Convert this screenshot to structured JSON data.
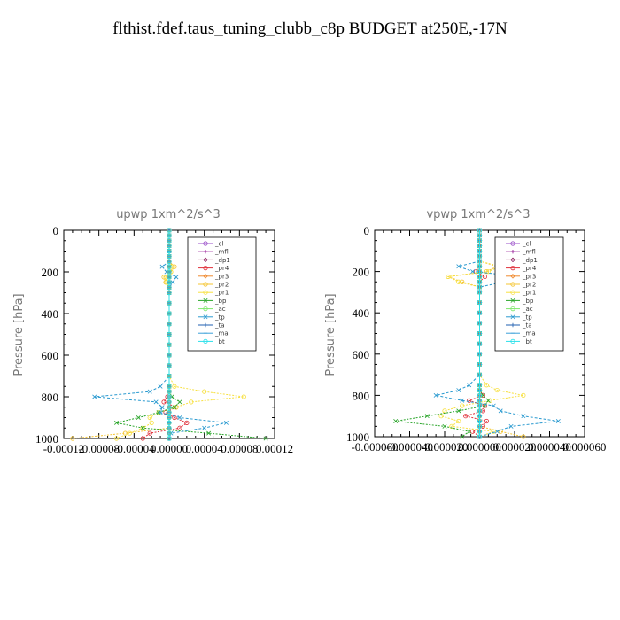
{
  "page_title": "flthist.fdef.taus_tuning_clubb_c8p  BUDGET at250E,-17N",
  "chart_data": [
    {
      "type": "line",
      "title": "upwp   1xm^2/s^3",
      "ylabel": "Pressure [hPa]",
      "xlabel": "",
      "ylim": [
        1000,
        0
      ],
      "xlim": [
        -0.00012,
        0.00012
      ],
      "x_ticks": [
        "-0.00012",
        "-0.00008",
        "-0.00004",
        "0.00000",
        "0.00004",
        "0.00008",
        "0.00012"
      ],
      "y_ticks": [
        "0",
        "200",
        "400",
        "600",
        "800",
        "1000"
      ],
      "legend": [
        "_cl",
        "_mfl",
        "_dp1",
        "_pr4",
        "_pr3",
        "_pr2",
        "_pr1",
        "_bp",
        "_ac",
        "_tp",
        "_ta",
        "_ma",
        "_bt"
      ],
      "levels": [
        0,
        25,
        50,
        75,
        100,
        125,
        150,
        175,
        200,
        225,
        250,
        275,
        300,
        350,
        400,
        450,
        500,
        550,
        600,
        650,
        700,
        750,
        775,
        800,
        825,
        850,
        875,
        900,
        925,
        950,
        975,
        1000
      ],
      "series": [
        {
          "name": "_cl",
          "color": "#9a4fc9",
          "values": [
            0,
            0,
            0,
            0,
            0,
            0,
            0,
            0,
            0,
            0,
            0,
            0,
            0,
            0,
            0,
            0,
            0,
            0,
            0,
            0,
            0,
            0,
            0,
            0,
            0,
            0,
            0,
            0,
            0,
            0,
            0,
            0
          ]
        },
        {
          "name": "_mfl",
          "color": "#8b008b",
          "values": [
            0,
            0,
            0,
            0,
            0,
            0,
            0,
            0,
            0,
            0,
            0,
            0,
            0,
            0,
            0,
            0,
            0,
            0,
            0,
            0,
            0,
            0,
            0,
            0,
            0,
            0,
            0,
            0,
            0,
            0,
            0,
            0
          ]
        },
        {
          "name": "_dp1",
          "color": "#8b1a5a",
          "values": [
            0,
            0,
            0,
            0,
            0,
            0,
            0,
            0,
            0,
            0,
            0,
            0,
            0,
            0,
            0,
            0,
            0,
            0,
            0,
            0,
            0,
            0,
            0,
            0,
            0,
            0,
            0,
            0,
            0,
            0,
            0,
            0
          ]
        },
        {
          "name": "_pr4",
          "color": "#e0303a",
          "values": [
            0,
            0,
            0,
            0,
            0,
            0,
            0,
            0,
            0,
            0,
            0,
            0,
            0,
            0,
            0,
            0,
            0,
            0,
            0,
            0,
            0,
            0,
            0,
            -2e-06,
            -6e-06,
            8e-06,
            -4e-06,
            6e-06,
            2e-05,
            1.2e-05,
            -2.2e-05,
            -3e-05
          ]
        },
        {
          "name": "_pr3",
          "color": "#f08a30",
          "values": [
            0,
            0,
            0,
            0,
            0,
            0,
            0,
            0,
            0,
            0,
            0,
            0,
            0,
            0,
            0,
            0,
            0,
            0,
            0,
            0,
            0,
            0,
            0,
            0,
            0,
            0,
            0,
            0,
            0,
            0,
            0,
            0
          ]
        },
        {
          "name": "_pr2",
          "color": "#f4c430",
          "values": [
            0,
            0,
            0,
            0,
            0,
            0,
            0,
            6e-06,
            2e-06,
            -6e-06,
            -4e-06,
            0,
            0,
            0,
            0,
            0,
            0,
            0,
            0,
            0,
            0,
            0,
            0,
            0,
            0,
            0,
            0,
            0,
            0,
            0,
            -5e-05,
            -0.00011
          ]
        },
        {
          "name": "_pr1",
          "color": "#f7e040",
          "values": [
            0,
            0,
            0,
            0,
            0,
            0,
            0,
            4e-06,
            2e-06,
            -4e-06,
            -3e-06,
            0,
            0,
            0,
            0,
            0,
            0,
            0,
            0,
            0,
            0,
            6e-06,
            4e-05,
            8.5e-05,
            2.5e-05,
            8e-06,
            -1.2e-05,
            -2.2e-05,
            -2e-05,
            -3e-05,
            -4.5e-05,
            -6e-05
          ]
        },
        {
          "name": "_bp",
          "color": "#2aa52a",
          "values": [
            0,
            0,
            0,
            0,
            0,
            0,
            0,
            0,
            0,
            0,
            0,
            0,
            0,
            0,
            0,
            0,
            0,
            0,
            0,
            0,
            0,
            0,
            0,
            3e-06,
            1.2e-05,
            6e-06,
            -1.2e-05,
            -3.5e-05,
            -6e-05,
            -3e-05,
            4.5e-05,
            0.00011
          ]
        },
        {
          "name": "_ac",
          "color": "#7de86a",
          "values": [
            0,
            0,
            0,
            0,
            0,
            0,
            0,
            0,
            0,
            0,
            0,
            0,
            0,
            0,
            0,
            0,
            0,
            0,
            0,
            0,
            0,
            0,
            0,
            0,
            0,
            0,
            0,
            0,
            0,
            0,
            0,
            0
          ]
        },
        {
          "name": "_tp",
          "color": "#2a9ad0",
          "values": [
            0,
            0,
            0,
            0,
            0,
            0,
            0,
            -8e-06,
            -3e-06,
            8e-06,
            4e-06,
            0,
            0,
            0,
            0,
            0,
            0,
            0,
            0,
            0,
            0,
            -1e-05,
            -2.2e-05,
            -8.5e-05,
            -1.5e-05,
            -8e-06,
            -1e-05,
            1.2e-05,
            6.5e-05,
            4e-05,
            2e-06,
            0
          ]
        },
        {
          "name": "_ta",
          "color": "#1f5fb0",
          "values": [
            0,
            0,
            0,
            0,
            0,
            0,
            0,
            0,
            0,
            0,
            0,
            0,
            0,
            0,
            0,
            0,
            0,
            0,
            0,
            0,
            0,
            0,
            0,
            0,
            0,
            0,
            0,
            0,
            0,
            0,
            0,
            0
          ]
        },
        {
          "name": "_ma",
          "color": "#3aa0d8",
          "values": [
            0,
            0,
            0,
            0,
            0,
            0,
            0,
            0,
            0,
            0,
            0,
            0,
            0,
            0,
            0,
            0,
            0,
            0,
            0,
            0,
            0,
            0,
            0,
            0,
            0,
            0,
            0,
            0,
            0,
            0,
            0,
            0
          ]
        },
        {
          "name": "_bt",
          "color": "#28e0ea",
          "values": [
            0,
            0,
            0,
            0,
            0,
            0,
            0,
            0,
            0,
            0,
            0,
            0,
            0,
            0,
            0,
            0,
            0,
            0,
            0,
            0,
            0,
            0,
            0,
            0,
            0,
            0,
            0,
            0,
            0,
            0,
            0,
            0
          ]
        }
      ]
    },
    {
      "type": "line",
      "title": "vpwp   1xm^2/s^3",
      "ylabel": "Pressure [hPa]",
      "xlabel": "",
      "ylim": [
        1000,
        0
      ],
      "xlim": [
        -6e-05,
        6e-05
      ],
      "x_ticks": [
        "-0.000060",
        "-0.000040",
        "-0.000020",
        "0.000000",
        "0.000020",
        "0.000040",
        "0.000060"
      ],
      "y_ticks": [
        "0",
        "200",
        "400",
        "600",
        "800",
        "1000"
      ],
      "legend": [
        "_cl",
        "_mfl",
        "_dp1",
        "_pr4",
        "_pr3",
        "_pr2",
        "_pr1",
        "_bp",
        "_ac",
        "_tp",
        "_ta",
        "_ma",
        "_bt"
      ],
      "levels": [
        0,
        25,
        50,
        75,
        100,
        125,
        150,
        175,
        200,
        225,
        250,
        275,
        300,
        350,
        400,
        450,
        500,
        550,
        600,
        650,
        700,
        750,
        775,
        800,
        825,
        850,
        875,
        900,
        925,
        950,
        975,
        1000
      ],
      "series": [
        {
          "name": "_cl",
          "color": "#9a4fc9",
          "values": [
            0,
            0,
            0,
            0,
            0,
            0,
            0,
            0,
            0,
            0,
            0,
            0,
            0,
            0,
            0,
            0,
            0,
            0,
            0,
            0,
            0,
            0,
            0,
            0,
            0,
            0,
            0,
            0,
            0,
            0,
            0,
            0
          ]
        },
        {
          "name": "_mfl",
          "color": "#8b008b",
          "values": [
            0,
            0,
            0,
            0,
            0,
            0,
            0,
            0,
            0,
            0,
            0,
            0,
            0,
            0,
            0,
            0,
            0,
            0,
            0,
            0,
            0,
            0,
            0,
            0,
            0,
            0,
            0,
            0,
            0,
            0,
            0,
            0
          ]
        },
        {
          "name": "_dp1",
          "color": "#8b1a5a",
          "values": [
            0,
            0,
            0,
            0,
            0,
            0,
            0,
            0,
            0,
            0,
            0,
            0,
            0,
            0,
            0,
            0,
            0,
            0,
            0,
            0,
            0,
            0,
            0,
            0,
            0,
            0,
            0,
            0,
            0,
            0,
            0,
            0
          ]
        },
        {
          "name": "_pr4",
          "color": "#e0303a",
          "values": [
            0,
            0,
            0,
            0,
            0,
            0,
            0,
            0,
            -2e-06,
            3e-06,
            0,
            0,
            0,
            0,
            0,
            0,
            0,
            0,
            0,
            0,
            0,
            0,
            0,
            2e-06,
            -6e-06,
            3e-06,
            2e-06,
            -8e-06,
            4e-06,
            2e-06,
            -4e-06,
            0
          ]
        },
        {
          "name": "_pr3",
          "color": "#f08a30",
          "values": [
            0,
            0,
            0,
            0,
            0,
            0,
            0,
            0,
            0,
            0,
            0,
            0,
            0,
            0,
            0,
            0,
            0,
            0,
            0,
            0,
            0,
            0,
            0,
            0,
            0,
            0,
            0,
            0,
            0,
            0,
            0,
            0
          ]
        },
        {
          "name": "_pr2",
          "color": "#f4c430",
          "values": [
            0,
            0,
            0,
            0,
            0,
            0,
            0,
            1e-05,
            4e-06,
            -1.8e-05,
            -1e-05,
            0,
            0,
            0,
            0,
            0,
            0,
            0,
            0,
            0,
            0,
            0,
            0,
            0,
            0,
            0,
            0,
            0,
            0,
            0,
            1.2e-05,
            2.5e-05
          ]
        },
        {
          "name": "_pr1",
          "color": "#f7e040",
          "values": [
            0,
            0,
            0,
            0,
            0,
            0,
            0,
            1.2e-05,
            5e-06,
            -1.8e-05,
            -1.2e-05,
            0,
            0,
            0,
            0,
            0,
            0,
            0,
            0,
            0,
            0,
            4e-06,
            1e-05,
            2.5e-05,
            6e-06,
            -1e-05,
            -2e-05,
            -2.2e-05,
            -1.2e-05,
            -1.6e-05,
            8e-06,
            0
          ]
        },
        {
          "name": "_bp",
          "color": "#2aa52a",
          "values": [
            0,
            0,
            0,
            0,
            0,
            0,
            0,
            0,
            0,
            0,
            0,
            0,
            0,
            0,
            0,
            0,
            0,
            0,
            0,
            0,
            0,
            0,
            0,
            2e-06,
            5e-06,
            3e-06,
            -1.2e-05,
            -3e-05,
            -4.8e-05,
            -2e-05,
            -6e-06,
            -1e-05
          ]
        },
        {
          "name": "_ac",
          "color": "#7de86a",
          "values": [
            0,
            0,
            0,
            0,
            0,
            0,
            0,
            0,
            0,
            0,
            0,
            0,
            0,
            0,
            0,
            0,
            0,
            0,
            0,
            0,
            0,
            0,
            0,
            0,
            0,
            0,
            0,
            0,
            0,
            0,
            0,
            0
          ]
        },
        {
          "name": "_tp",
          "color": "#2a9ad0",
          "values": [
            0,
            0,
            0,
            0,
            0,
            0,
            0,
            -1.2e-05,
            -4e-06,
            2.5e-05,
            1.4e-05,
            0,
            0,
            0,
            0,
            0,
            0,
            0,
            0,
            0,
            0,
            -6e-06,
            -1.2e-05,
            -2.5e-05,
            -1e-05,
            8e-06,
            1.2e-05,
            2.5e-05,
            4.5e-05,
            1.8e-05,
            1e-05,
            0
          ]
        },
        {
          "name": "_ta",
          "color": "#1f5fb0",
          "values": [
            0,
            0,
            0,
            0,
            0,
            0,
            0,
            0,
            0,
            0,
            0,
            0,
            0,
            0,
            0,
            0,
            0,
            0,
            0,
            0,
            0,
            0,
            0,
            0,
            0,
            0,
            0,
            0,
            0,
            0,
            0,
            0
          ]
        },
        {
          "name": "_ma",
          "color": "#3aa0d8",
          "values": [
            0,
            0,
            0,
            0,
            0,
            0,
            0,
            0,
            0,
            0,
            0,
            0,
            0,
            0,
            0,
            0,
            0,
            0,
            0,
            0,
            0,
            0,
            0,
            0,
            0,
            0,
            0,
            0,
            0,
            0,
            0,
            0
          ]
        },
        {
          "name": "_bt",
          "color": "#28e0ea",
          "values": [
            0,
            0,
            0,
            0,
            0,
            0,
            0,
            0,
            0,
            0,
            0,
            0,
            0,
            0,
            0,
            0,
            0,
            0,
            0,
            0,
            0,
            0,
            0,
            0,
            0,
            0,
            0,
            0,
            0,
            0,
            0,
            0
          ]
        }
      ]
    }
  ]
}
